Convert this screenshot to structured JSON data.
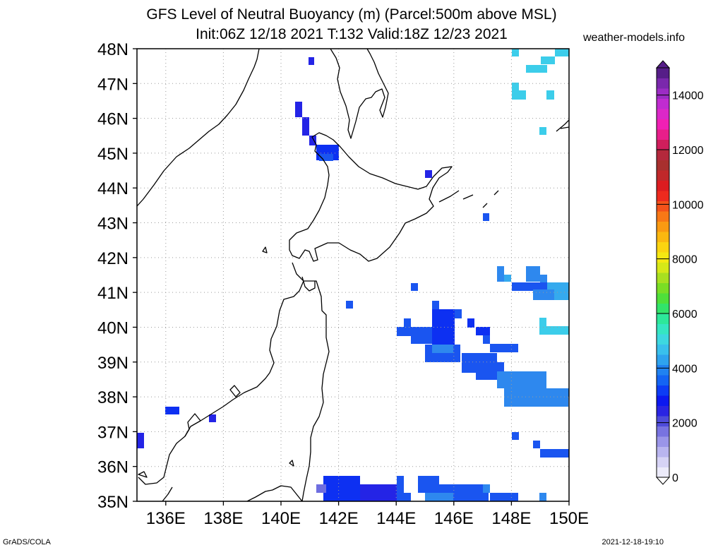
{
  "title": {
    "line1": "GFS Level of Neutral Buoyancy (m) (Parcel:500m above MSL)",
    "line2": "Init:06Z 12/18 2021 T:132 Valid:18Z 12/23 2021"
  },
  "credit": "weather-models.info",
  "footer": {
    "left": "GrADS/COLA",
    "right": "2021-12-18-19:10"
  },
  "map": {
    "lon_range": [
      135,
      150
    ],
    "lat_range": [
      35,
      48
    ],
    "lon_labels": [
      "136E",
      "138E",
      "140E",
      "142E",
      "144E",
      "146E",
      "148E",
      "150E"
    ],
    "lat_labels": [
      "35N",
      "36N",
      "37N",
      "38N",
      "39N",
      "40N",
      "41N",
      "42N",
      "43N",
      "44N",
      "45N",
      "46N",
      "47N",
      "48N"
    ]
  },
  "colorbar": {
    "labels": [
      "0",
      "2000",
      "4000",
      "6000",
      "8000",
      "10000",
      "12000",
      "14000"
    ],
    "colors": [
      "#ecebfa",
      "#d6d3f5",
      "#b9b5ef",
      "#9a95e8",
      "#7873e0",
      "#4e4bda",
      "#2a24e3",
      "#0c18f0",
      "#0d3cf5",
      "#1464f3",
      "#2082f0",
      "#2ea3ee",
      "#39c0ec",
      "#3dd8e0",
      "#35e6c2",
      "#2de89a",
      "#32e46a",
      "#4fe03a",
      "#7ade25",
      "#a8e020",
      "#d6e818",
      "#f5e812",
      "#fbd410",
      "#fbb810",
      "#fa9a12",
      "#f87816",
      "#f4521a",
      "#ee2a1e",
      "#dc1c20",
      "#c0282a",
      "#a8302e",
      "#b4283c",
      "#d01e5c",
      "#e81e8a",
      "#f020b4",
      "#dc28c8",
      "#c02cd0",
      "#9c2cc4",
      "#7a28ac",
      "#561e88"
    ]
  }
}
